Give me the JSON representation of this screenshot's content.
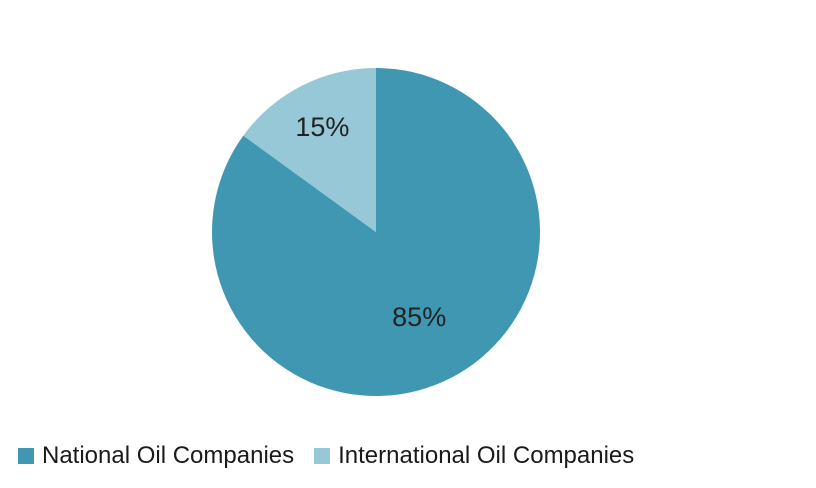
{
  "chart_data": {
    "type": "pie",
    "title": "",
    "slices": [
      {
        "name": "National Oil Companies",
        "value": 85,
        "label": "85%",
        "color": "#4097b1"
      },
      {
        "name": "International Oil Companies",
        "value": 15,
        "label": "15%",
        "color": "#97c8d7"
      }
    ],
    "start_angle_deg": 0,
    "direction": "clockwise",
    "legend_position": "bottom-left"
  }
}
